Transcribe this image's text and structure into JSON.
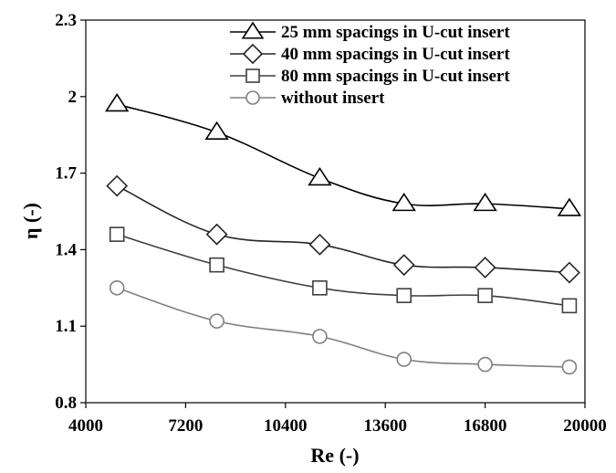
{
  "chart_data": {
    "type": "line",
    "title": "",
    "xlabel": "Re (-)",
    "ylabel": "η (-)",
    "xlim": [
      4000,
      20000
    ],
    "ylim": [
      0.8,
      2.3
    ],
    "x_ticks": [
      "4000",
      "7200",
      "10400",
      "13600",
      "16800",
      "20000"
    ],
    "y_ticks": [
      "0.8",
      "1.1",
      "1.4",
      "1.7",
      "2",
      "2.3"
    ],
    "x_tick_values": [
      4000,
      7200,
      10400,
      13600,
      16800,
      20000
    ],
    "y_tick_values": [
      0.8,
      1.1,
      1.4,
      1.7,
      2.0,
      2.3
    ],
    "grid": false,
    "legend_position": "top-right",
    "series": [
      {
        "name": "25 mm spacings in U-cut insert",
        "marker": "triangle",
        "color": "#000000",
        "x": [
          5000,
          8200,
          11500,
          14200,
          16800,
          19500
        ],
        "y": [
          1.97,
          1.86,
          1.68,
          1.58,
          1.58,
          1.56
        ]
      },
      {
        "name": "40 mm spacings in U-cut insert",
        "marker": "diamond",
        "color": "#262626",
        "x": [
          5000,
          8200,
          11500,
          14200,
          16800,
          19500
        ],
        "y": [
          1.65,
          1.46,
          1.42,
          1.34,
          1.33,
          1.31
        ]
      },
      {
        "name": "80 mm spacings in U-cut insert",
        "marker": "square",
        "color": "#404040",
        "x": [
          5000,
          8200,
          11500,
          14200,
          16800,
          19500
        ],
        "y": [
          1.46,
          1.34,
          1.25,
          1.22,
          1.22,
          1.18
        ]
      },
      {
        "name": "without insert",
        "marker": "circle",
        "color": "#7f7f7f",
        "x": [
          5000,
          8200,
          11500,
          14200,
          16800,
          19500
        ],
        "y": [
          1.25,
          1.12,
          1.06,
          0.97,
          0.95,
          0.94
        ]
      }
    ]
  }
}
